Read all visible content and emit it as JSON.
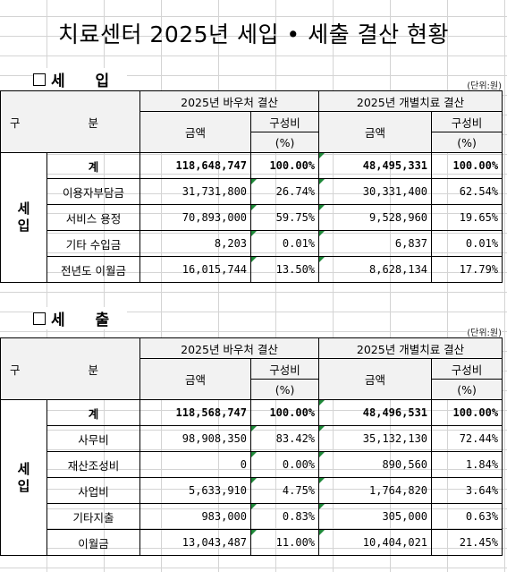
{
  "title": "치료센터 2025년 세입 • 세출 결산 현황",
  "income": {
    "heading": "세 입",
    "unit": "(단위:원)",
    "header": {
      "category": "구 분",
      "voucher": "2025년 바우처 결산",
      "individual": "2025년 개별치료 결산",
      "amount": "금액",
      "ratio": "구성비",
      "percent": "(%)"
    },
    "side_label": "세\n입",
    "rows": [
      {
        "label": "계",
        "v_amt": "118,648,747",
        "v_pct": "100.00%",
        "i_amt": "48,495,331",
        "i_pct": "100.00%",
        "total": true
      },
      {
        "label": "이용자부담금",
        "v_amt": "31,731,800",
        "v_pct": "26.74%",
        "i_amt": "30,331,400",
        "i_pct": "62.54%"
      },
      {
        "label": "서비스 용정",
        "v_amt": "70,893,000",
        "v_pct": "59.75%",
        "i_amt": "9,528,960",
        "i_pct": "19.65%"
      },
      {
        "label": "기타 수입금",
        "v_amt": "8,203",
        "v_pct": "0.01%",
        "i_amt": "6,837",
        "i_pct": "0.01%"
      },
      {
        "label": "전년도 이월금",
        "v_amt": "16,015,744",
        "v_pct": "13.50%",
        "i_amt": "8,628,134",
        "i_pct": "17.79%"
      }
    ]
  },
  "expense": {
    "heading": "세 출",
    "unit": "(단위:원)",
    "header": {
      "category": "구 분",
      "voucher": "2025년 바우처 결산",
      "individual": "2025년 개별치료 결산",
      "amount": "금액",
      "ratio": "구성비",
      "percent": "(%)"
    },
    "side_label": "세\n입",
    "rows": [
      {
        "label": "계",
        "v_amt": "118,568,747",
        "v_pct": "100.00%",
        "i_amt": "48,496,531",
        "i_pct": "100.00%",
        "total": true
      },
      {
        "label": "사무비",
        "v_amt": "98,908,350",
        "v_pct": "83.42%",
        "i_amt": "35,132,130",
        "i_pct": "72.44%"
      },
      {
        "label": "재산조성비",
        "v_amt": "0",
        "v_pct": "0.00%",
        "i_amt": "890,560",
        "i_pct": "1.84%"
      },
      {
        "label": "사업비",
        "v_amt": "5,633,910",
        "v_pct": "4.75%",
        "i_amt": "1,764,820",
        "i_pct": "3.64%"
      },
      {
        "label": "기타지출",
        "v_amt": "983,000",
        "v_pct": "0.83%",
        "i_amt": "305,000",
        "i_pct": "0.63%"
      },
      {
        "label": "이월금",
        "v_amt": "13,043,487",
        "v_pct": "11.00%",
        "i_amt": "10,404,021",
        "i_pct": "21.45%"
      }
    ]
  }
}
